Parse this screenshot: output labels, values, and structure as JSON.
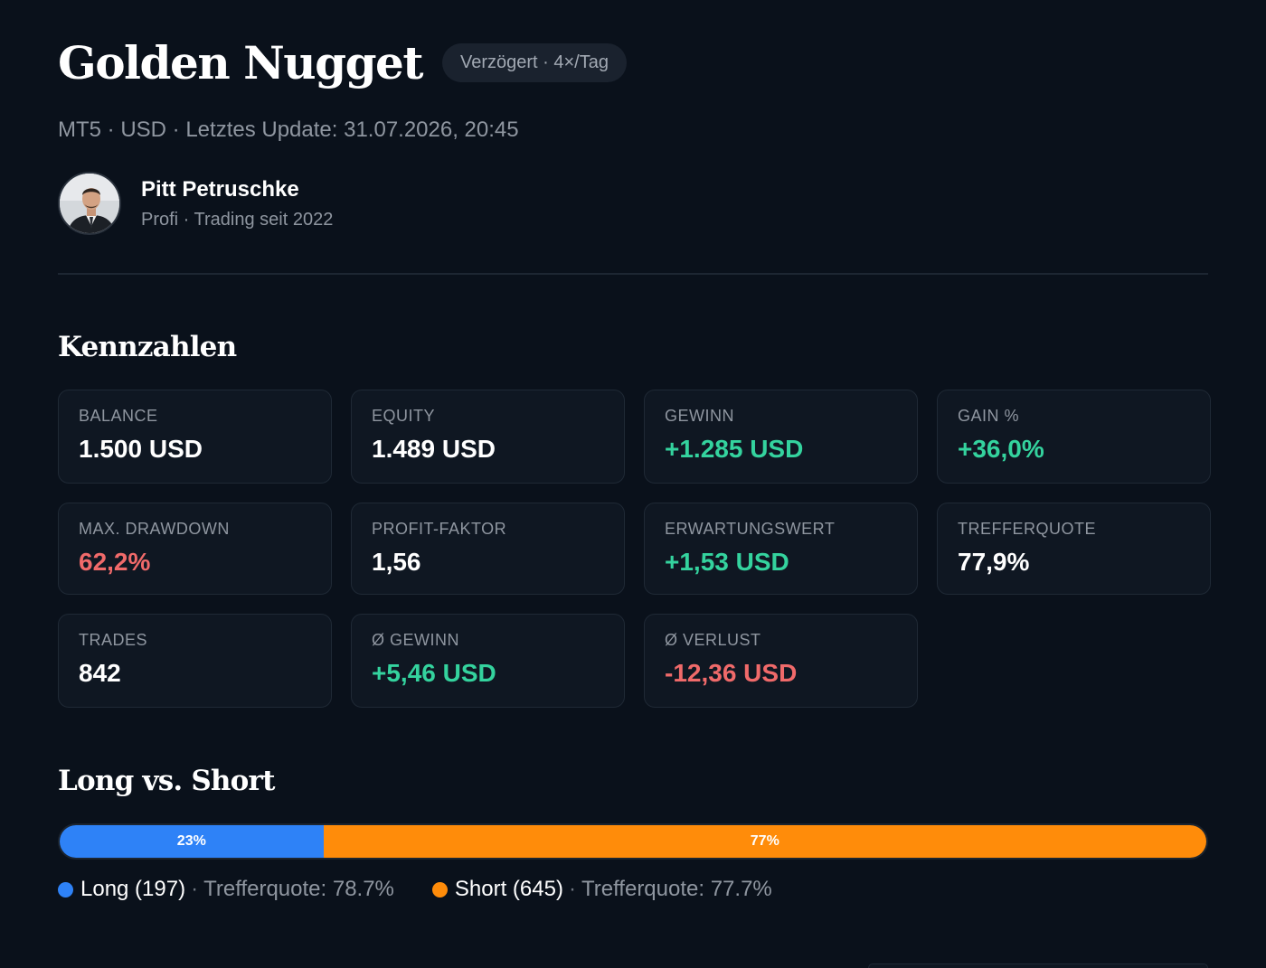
{
  "header": {
    "title": "Golden Nugget",
    "badge": "Verzögert · 4×/Tag",
    "subtitle": "MT5 · USD · Letztes Update: 31.07.2026, 20:45"
  },
  "author": {
    "name": "Pitt Petruschke",
    "meta": "Profi · Trading seit 2022"
  },
  "kennzahlen": {
    "title": "Kennzahlen",
    "cards": [
      {
        "label": "BALANCE",
        "value": "1.500 USD",
        "tone": "neutral"
      },
      {
        "label": "EQUITY",
        "value": "1.489 USD",
        "tone": "neutral"
      },
      {
        "label": "GEWINN",
        "value": "+1.285 USD",
        "tone": "pos"
      },
      {
        "label": "GAIN %",
        "value": "+36,0%",
        "tone": "pos"
      },
      {
        "label": "MAX. DRAWDOWN",
        "value": "62,2%",
        "tone": "neg"
      },
      {
        "label": "PROFIT-FAKTOR",
        "value": "1,56",
        "tone": "neutral"
      },
      {
        "label": "ERWARTUNGSWERT",
        "value": "+1,53 USD",
        "tone": "pos"
      },
      {
        "label": "TREFFERQUOTE",
        "value": "77,9%",
        "tone": "neutral"
      },
      {
        "label": "TRADES",
        "value": "842",
        "tone": "neutral"
      },
      {
        "label": "Ø GEWINN",
        "value": "+5,46 USD",
        "tone": "pos"
      },
      {
        "label": "Ø VERLUST",
        "value": "-12,36 USD",
        "tone": "neg"
      }
    ]
  },
  "long_short": {
    "title": "Long vs. Short",
    "long_percent": 23,
    "short_percent": 77,
    "long_bar_label": "23%",
    "short_bar_label": "77%",
    "long_label": "Long (197)",
    "long_stat": "Trefferquote: 78.7%",
    "short_label": "Short (645)",
    "short_stat": "Trefferquote: 77.7%",
    "separator": "·",
    "colors": {
      "long": "#2e82f7",
      "short": "#ff8c0a"
    }
  },
  "colors": {
    "positive": "#34d39e",
    "negative": "#f06a6a",
    "background": "#0a111b"
  }
}
